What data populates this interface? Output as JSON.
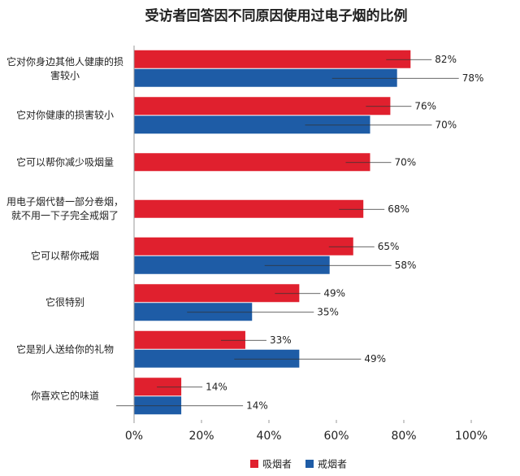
{
  "chart_data": {
    "type": "bar",
    "orientation": "horizontal",
    "title": "受访者回答因不同原因使用过电子烟的比例",
    "categories": [
      "它对你身边其他人健康的损害较小",
      "它对你健康的损害较小",
      "它可以帮你减少吸烟量",
      "用电子烟代替一部分卷烟，就不用一下子完全戒烟了",
      "它可以帮你戒烟",
      "它很特别",
      "它是别人送给你的礼物",
      "你喜欢它的味道"
    ],
    "series": [
      {
        "name": "吸烟者",
        "color": "#e0202e",
        "values": [
          82,
          76,
          70,
          68,
          65,
          49,
          33,
          14
        ],
        "value_labels": [
          "82%",
          "76%",
          "70%",
          "68%",
          "65%",
          "49%",
          "33%",
          "14%"
        ]
      },
      {
        "name": "戒烟者",
        "color": "#1e5ca6",
        "values": [
          78,
          70,
          null,
          null,
          58,
          35,
          49,
          14
        ],
        "value_labels": [
          "78%",
          "70%",
          null,
          null,
          "58%",
          "35%",
          "49%",
          "14%"
        ]
      }
    ],
    "xlim": [
      0,
      100
    ],
    "xticks": [
      {
        "value": 0,
        "label": "0%"
      },
      {
        "value": 20,
        "label": "20%"
      },
      {
        "value": 40,
        "label": "40%"
      },
      {
        "value": 60,
        "label": "60%"
      },
      {
        "value": 80,
        "label": "80%"
      },
      {
        "value": 100,
        "label": "100%"
      }
    ],
    "legend": "bottom"
  }
}
